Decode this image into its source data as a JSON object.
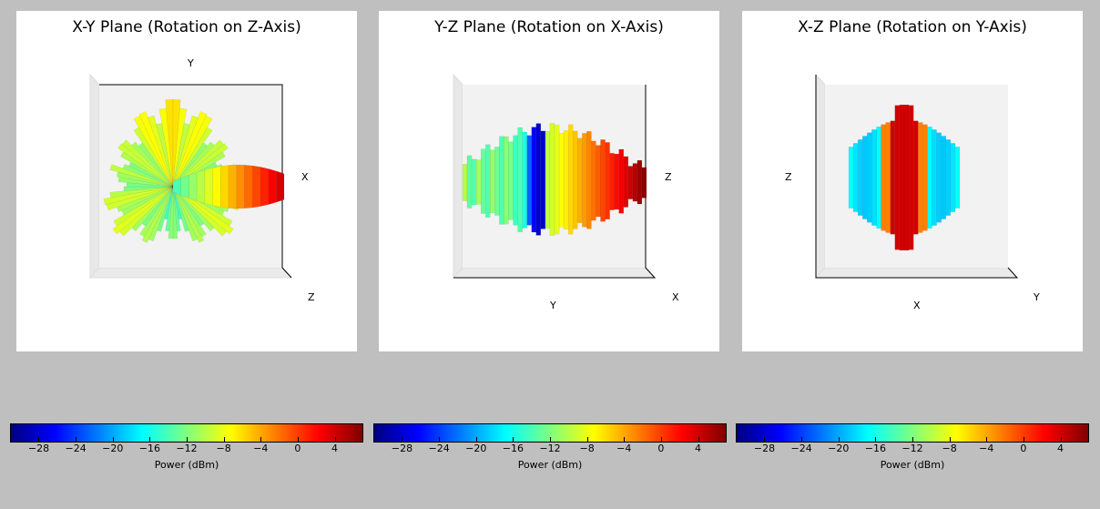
{
  "chart_data": [
    {
      "type": "surface3d",
      "title": "X-Y Plane (Rotation on Z-Axis)",
      "axis_labels": {
        "top": "Y",
        "right": "X",
        "corner": "Z"
      },
      "view": "looking down Z-axis",
      "colormap": "jet",
      "colorbar": {
        "label": "Power (dBm)",
        "ticks": [
          -28,
          -24,
          -20,
          -16,
          -12,
          -8,
          -4,
          0,
          4
        ],
        "range": [
          -31,
          7
        ]
      },
      "pattern": "many narrow lobes spread around the center with a strong main lobe pointing toward +X reaching about 6 dBm"
    },
    {
      "type": "surface3d",
      "title": "Y-Z Plane (Rotation on X-Axis)",
      "axis_labels": {
        "right": "Z",
        "bottom": "Y",
        "corner": "X"
      },
      "view": "looking down X-axis",
      "colormap": "jet",
      "colorbar": {
        "label": "Power (dBm)",
        "ticks": [
          -28,
          -24,
          -20,
          -16,
          -12,
          -8,
          -4,
          0,
          4
        ],
        "range": [
          -31,
          7
        ]
      },
      "pattern": "elongated ribbed body with weakest power at center and strongest power on the +Z side"
    },
    {
      "type": "surface3d",
      "title": "X-Z Plane (Rotation on Y-Axis)",
      "axis_labels": {
        "left": "Z",
        "bottom": "X",
        "corner": "Y"
      },
      "view": "looking down Y-axis",
      "colormap": "jet",
      "colorbar": {
        "label": "Power (dBm)",
        "ticks": [
          -28,
          -24,
          -20,
          -16,
          -12,
          -8,
          -4,
          0,
          4
        ],
        "range": [
          -31,
          7
        ]
      },
      "pattern": "compact symmetric body with strongest power in a vertical band at center"
    }
  ]
}
